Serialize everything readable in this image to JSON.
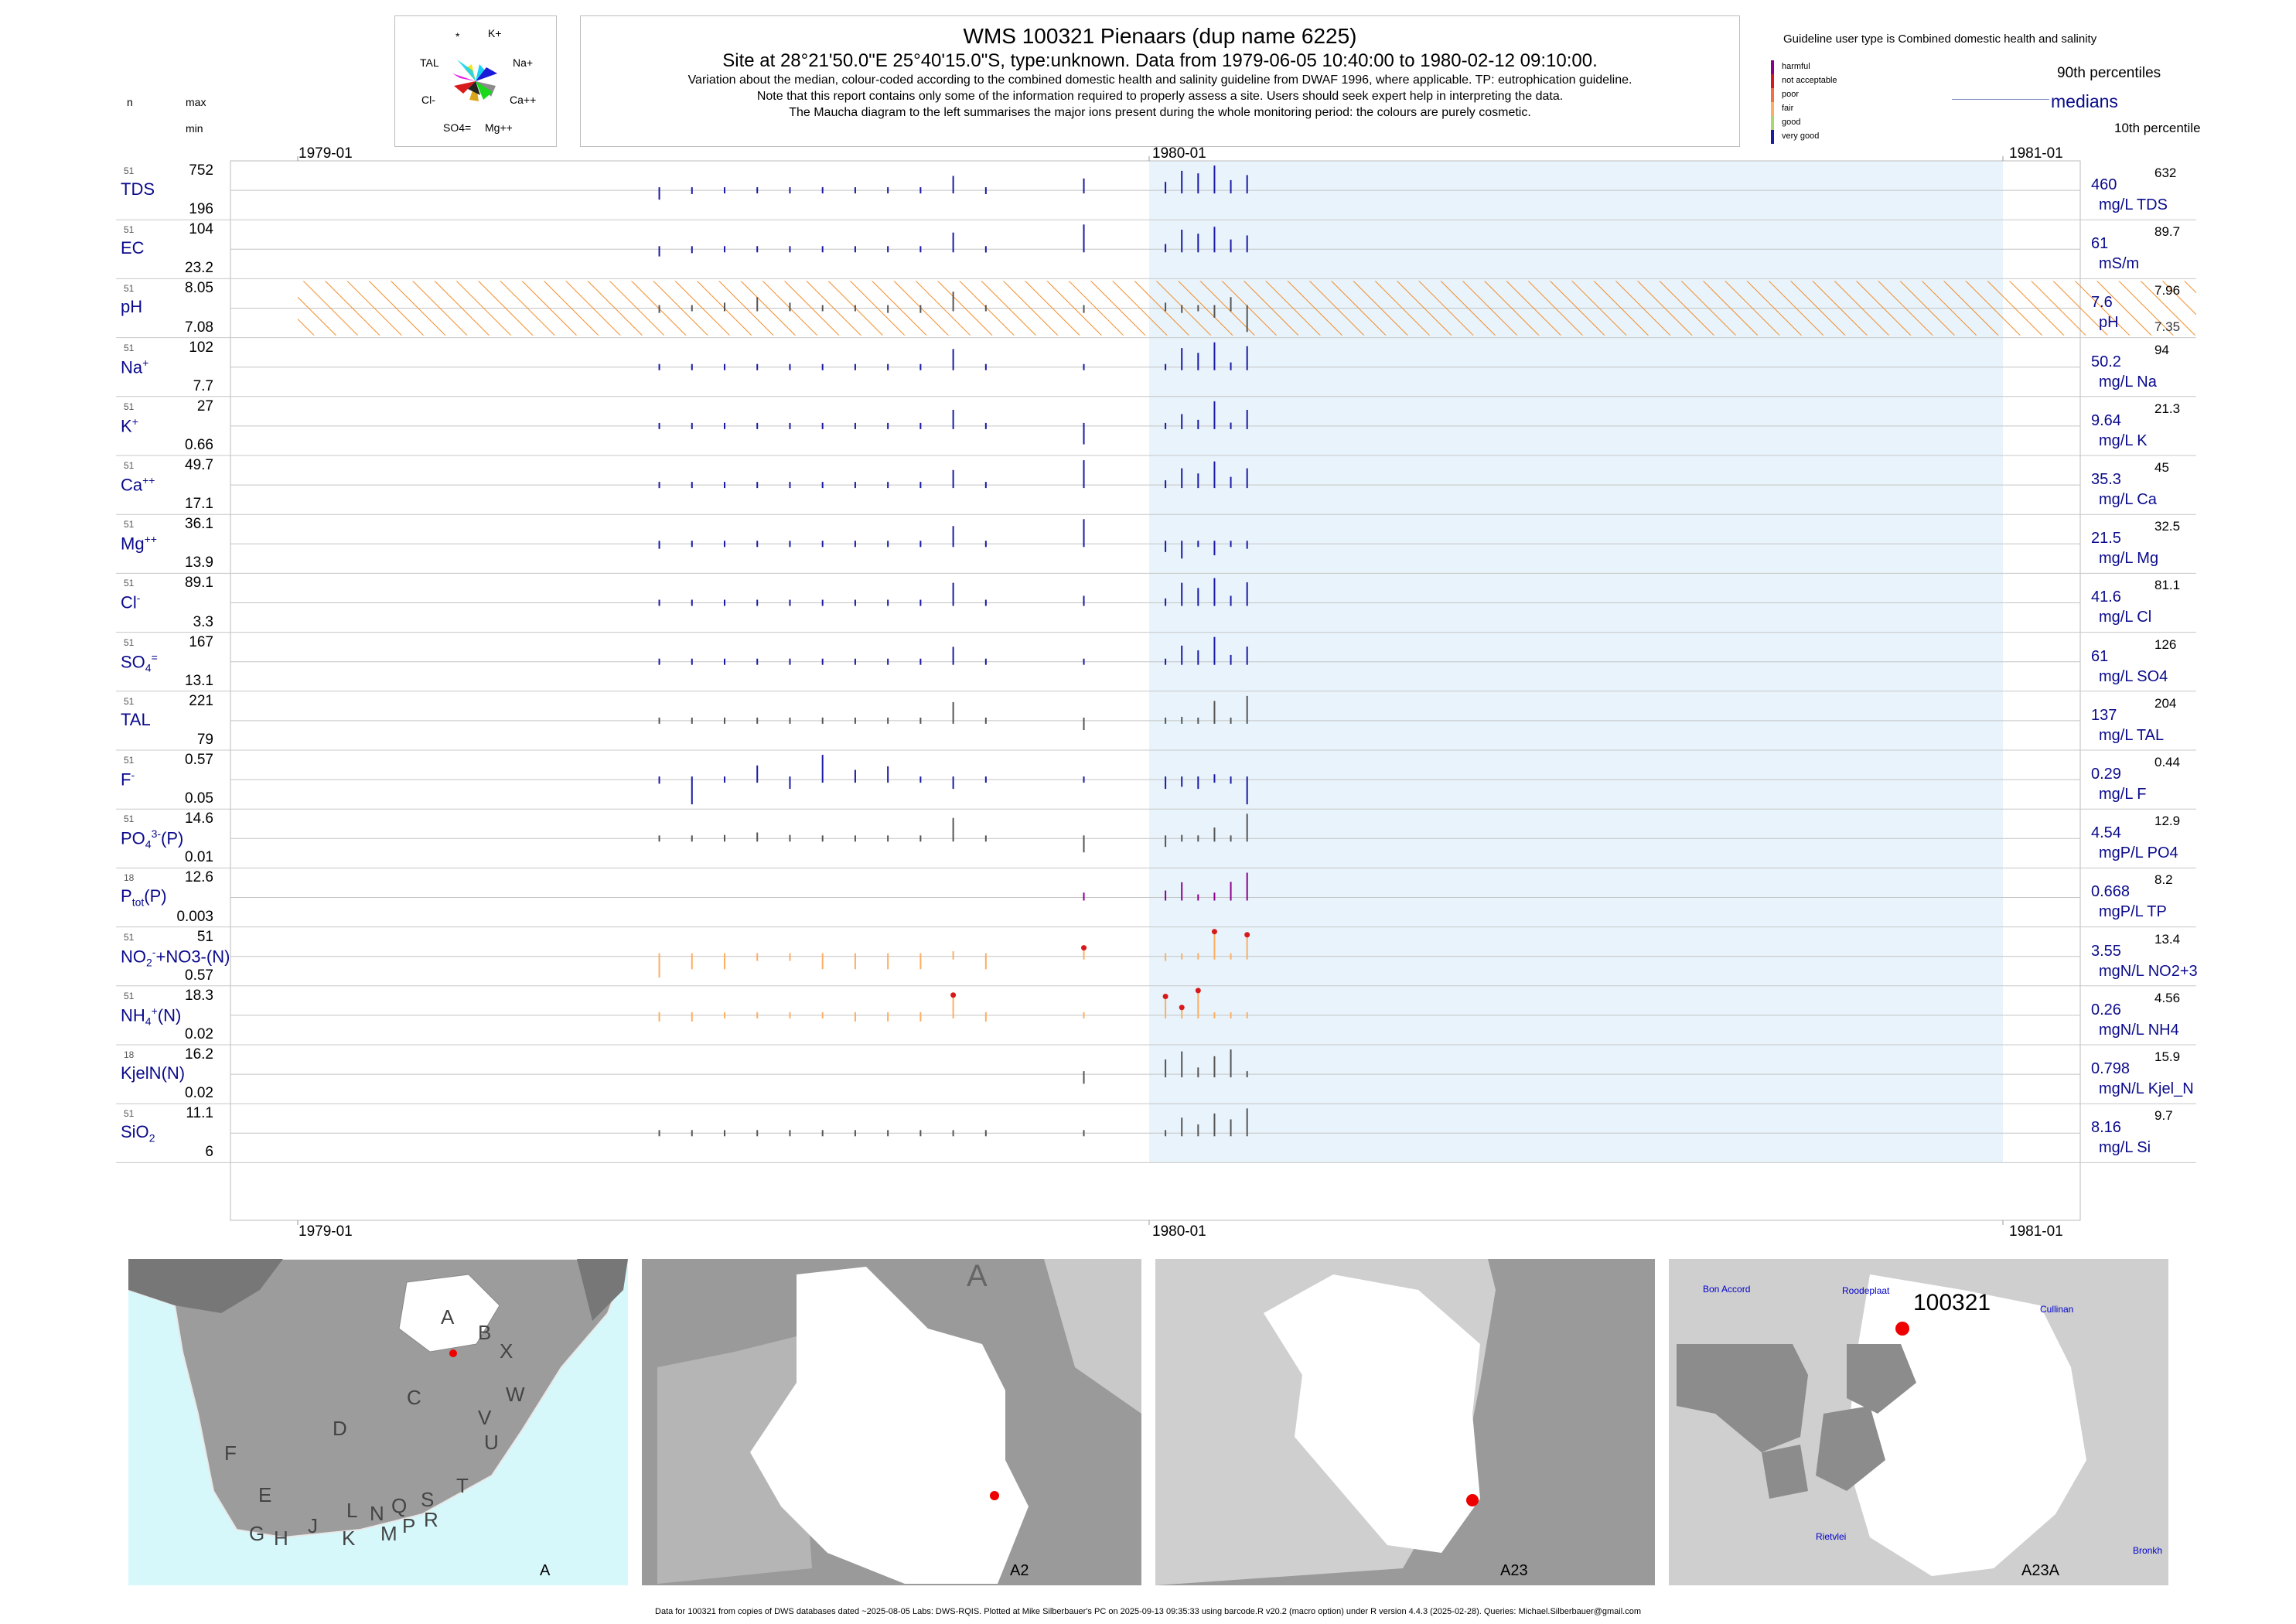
{
  "header": {
    "title": "WMS 100321  Pienaars (dup name 6225)",
    "subtitle": "Site at 28°21'50.0\"E 25°40'15.0\"S, type:unknown.  Data from 1979-06-05 10:40:00 to 1980-02-12 09:10:00.",
    "note1": "Variation about the median,  colour-coded according to the combined domestic health and salinity guideline from DWAF 1996, where applicable. TP: eutrophication guideline.",
    "note2": "Note that this report contains only some of the information required to properly assess a site. Users should seek expert help in interpreting the data.",
    "note3": "The Maucha diagram to the left summarises the major ions present during the whole monitoring period: the colours are purely cosmetic."
  },
  "maucha": {
    "labels": [
      "*",
      "K+",
      "TAL",
      "Na+",
      "Cl-",
      "Ca++",
      "SO4=",
      "Mg++"
    ],
    "colors": [
      "#f2e61a",
      "#1ad1f2",
      "#e61ae6",
      "#1a1ad9",
      "#d91a1a",
      "#8c8c8c",
      "#d9a61a",
      "#1ad91a"
    ]
  },
  "legend": {
    "guideline_text": "Guideline user type is Combined domestic health and salinity",
    "categories": [
      {
        "label": "harmful",
        "color": "#8b008b"
      },
      {
        "label": "not acceptable",
        "color": "#d7191c"
      },
      {
        "label": "poor",
        "color": "#f46d43"
      },
      {
        "label": "fair",
        "color": "#fdae61"
      },
      {
        "label": "good",
        "color": "#a6d96a"
      },
      {
        "label": "very good",
        "color": "#1a1aa6"
      }
    ],
    "p90": "90th percentiles",
    "medians": "medians",
    "p10": "10th percentile"
  },
  "column_headers": {
    "n": "n",
    "max": "max",
    "min": "min"
  },
  "chart_data": {
    "type": "line",
    "x_axis": {
      "ticks": [
        "1979-01",
        "1980-01",
        "1981-01"
      ],
      "range": [
        "1979-01-01",
        "1981-01-01"
      ]
    },
    "sample_dates": [
      "1979-06-05",
      "1979-06-19",
      "1979-07-03",
      "1979-07-17",
      "1979-07-31",
      "1979-08-14",
      "1979-08-28",
      "1979-09-11",
      "1979-09-25",
      "1979-10-09",
      "1979-10-23",
      "1979-12-04",
      "1980-01-08",
      "1980-01-15",
      "1980-01-22",
      "1980-01-29",
      "1980-02-05",
      "1980-02-12"
    ],
    "series": [
      {
        "name": "TDS",
        "sub": "",
        "sup": "",
        "n": "51",
        "max": "752",
        "min": "196",
        "median": "460",
        "unit": "mg/L TDS",
        "p90": "632",
        "p10": "",
        "tick_color": "#1a1aa6",
        "hatch": false,
        "values": [
          360,
          420,
          440,
          470,
          470,
          440,
          440,
          430,
          440,
          630,
          420,
          600,
          560,
          690,
          660,
          752,
          580,
          640
        ]
      },
      {
        "name": "EC",
        "sub": "",
        "sup": "",
        "n": "51",
        "max": "104",
        "min": "23.2",
        "median": "61",
        "unit": "mS/m",
        "p90": "89.7",
        "p10": "",
        "tick_color": "#1a1aa6",
        "hatch": false,
        "values": [
          50,
          55,
          58,
          62,
          63,
          58,
          58,
          57,
          58,
          90,
          56,
          104,
          70,
          95,
          88,
          100,
          78,
          85
        ]
      },
      {
        "name": "pH",
        "sub": "",
        "sup": "",
        "n": "51",
        "max": "8.05",
        "min": "7.08",
        "median": "7.6",
        "unit": "pH",
        "p90": "7.96",
        "p10": "7.35",
        "tick_color": "#555555",
        "hatch": true,
        "values": [
          7.5,
          7.6,
          7.7,
          7.8,
          7.7,
          7.6,
          7.6,
          7.5,
          7.5,
          7.9,
          7.6,
          7.5,
          7.7,
          7.5,
          7.6,
          7.4,
          7.8,
          7.1
        ]
      },
      {
        "name": "Na",
        "sub": "",
        "sup": "+",
        "n": "51",
        "max": "102",
        "min": "7.7",
        "median": "50.2",
        "unit": "mg/L Na",
        "p90": "94",
        "p10": "",
        "tick_color": "#1a1aa6",
        "hatch": false,
        "values": [
          45,
          48,
          50,
          52,
          52,
          50,
          49,
          48,
          49,
          88,
          47,
          50,
          55,
          90,
          80,
          102,
          60,
          94
        ]
      },
      {
        "name": "K",
        "sub": "",
        "sup": "+",
        "n": "51",
        "max": "27",
        "min": "0.66",
        "median": "9.64",
        "unit": "mg/L K",
        "p90": "21.3",
        "p10": "",
        "tick_color": "#1a1aa6",
        "hatch": false,
        "values": [
          9,
          10,
          10,
          11,
          11,
          10,
          10,
          10,
          10,
          21,
          9,
          3,
          10,
          18,
          14,
          27,
          12,
          21
        ]
      },
      {
        "name": "Ca",
        "sub": "",
        "sup": "++",
        "n": "51",
        "max": "49.7",
        "min": "17.1",
        "median": "35.3",
        "unit": "mg/L Ca",
        "p90": "45",
        "p10": "",
        "tick_color": "#1a1aa6",
        "hatch": false,
        "values": [
          33,
          34,
          35,
          36,
          36,
          35,
          35,
          34,
          34,
          44,
          34,
          49.7,
          38,
          45,
          42,
          49,
          40,
          45
        ]
      },
      {
        "name": "Mg",
        "sub": "",
        "sup": "++",
        "n": "51",
        "max": "36.1",
        "min": "13.9",
        "median": "21.5",
        "unit": "mg/L Mg",
        "p90": "32.5",
        "p10": "",
        "tick_color": "#1a1aa6",
        "hatch": false,
        "values": [
          20,
          21,
          22,
          23,
          23,
          22,
          21,
          21,
          21,
          32,
          21,
          36.1,
          19,
          17,
          22,
          18,
          22,
          20
        ]
      },
      {
        "name": "Cl",
        "sub": "",
        "sup": "-",
        "n": "51",
        "max": "89.1",
        "min": "3.3",
        "median": "41.6",
        "unit": "mg/L Cl",
        "p90": "81.1",
        "p10": "",
        "tick_color": "#1a1aa6",
        "hatch": false,
        "values": [
          38,
          40,
          42,
          43,
          43,
          42,
          41,
          40,
          41,
          80,
          40,
          55,
          50,
          80,
          70,
          89.1,
          55,
          81
        ]
      },
      {
        "name": "SO",
        "sub": "4",
        "sup": "=",
        "n": "51",
        "max": "167",
        "min": "13.1",
        "median": "61",
        "unit": "mg/L SO4",
        "p90": "126",
        "p10": "",
        "tick_color": "#1a1aa6",
        "hatch": false,
        "values": [
          55,
          58,
          60,
          62,
          62,
          60,
          59,
          58,
          59,
          125,
          58,
          60,
          65,
          130,
          110,
          167,
          90,
          126
        ]
      },
      {
        "name": "TAL",
        "sub": "",
        "sup": "",
        "n": "51",
        "max": "221",
        "min": "79",
        "median": "137",
        "unit": "mg/L TAL",
        "p90": "204",
        "p10": "",
        "tick_color": "#555555",
        "hatch": false,
        "values": [
          130,
          135,
          140,
          145,
          145,
          140,
          138,
          136,
          137,
          200,
          135,
          115,
          130,
          150,
          140,
          204,
          145,
          221
        ]
      },
      {
        "name": "F",
        "sub": "",
        "sup": "-",
        "n": "51",
        "max": "0.57",
        "min": "0.05",
        "median": "0.29",
        "unit": "mg/L F",
        "p90": "0.44",
        "p10": "",
        "tick_color": "#1a1aa6",
        "hatch": false,
        "values": [
          0.25,
          0.05,
          0.3,
          0.45,
          0.2,
          0.57,
          0.4,
          0.44,
          0.3,
          0.2,
          0.28,
          0.3,
          0.2,
          0.22,
          0.2,
          0.35,
          0.25,
          0.05
        ]
      },
      {
        "name": "PO",
        "sub": "4",
        "sup": "3-",
        "suffix": "(P)",
        "n": "51",
        "max": "14.6",
        "min": "0.01",
        "median": "4.54",
        "unit": "mgP/L PO4",
        "p90": "12.9",
        "p10": "",
        "tick_color": "#555555",
        "hatch": false,
        "values": [
          4,
          5,
          6,
          7,
          6,
          5,
          5,
          4,
          4,
          12.9,
          4,
          2,
          3,
          6,
          5,
          9,
          4,
          14.6
        ]
      },
      {
        "name": "P",
        "sub": "tot",
        "sup": "",
        "suffix": "(P)",
        "n": "18",
        "max": "12.6",
        "min": "0.003",
        "median": "0.668",
        "unit": "mgP/L TP",
        "p90": "8.2",
        "p10": "",
        "tick_color": "#8b008b",
        "hatch": false,
        "values": [
          null,
          null,
          null,
          null,
          null,
          null,
          null,
          null,
          null,
          null,
          null,
          3,
          4,
          8,
          1,
          3,
          8.2,
          12.6
        ]
      },
      {
        "name": "NO",
        "sub": "2",
        "sup": "-",
        "suffix": "+NO3-(N)",
        "n": "51",
        "max": "51",
        "min": "0.57",
        "median": "3.55",
        "unit": "mgN/L NO2+3",
        "p90": "13.4",
        "p10": "",
        "tick_color": "#fdae61",
        "hatch": false,
        "values": [
          1,
          2,
          2,
          3,
          3,
          2,
          2,
          2,
          2,
          13.4,
          2,
          20,
          3,
          4,
          5,
          51,
          6,
          45
        ]
      },
      {
        "name": "NH",
        "sub": "4",
        "sup": "+",
        "suffix": "(N)",
        "n": "51",
        "max": "18.3",
        "min": "0.02",
        "median": "0.26",
        "unit": "mgN/L NH4",
        "p90": "4.56",
        "p10": "",
        "tick_color": "#fdae61",
        "hatch": false,
        "values": [
          0.2,
          0.2,
          0.3,
          0.3,
          0.3,
          0.3,
          0.2,
          0.2,
          0.2,
          15,
          0.2,
          0.3,
          14,
          6,
          18.3,
          0.3,
          0.3,
          0.3
        ]
      },
      {
        "name": "KjelN(N)",
        "sub": "",
        "sup": "",
        "n": "18",
        "max": "16.2",
        "min": "0.02",
        "median": "0.798",
        "unit": "mgN/L Kjel_N",
        "p90": "15.9",
        "p10": "",
        "tick_color": "#555555",
        "hatch": false,
        "values": [
          null,
          null,
          null,
          null,
          null,
          null,
          null,
          null,
          null,
          null,
          null,
          0.5,
          10,
          15,
          5,
          12,
          16.2,
          1
        ]
      },
      {
        "name": "SiO",
        "sub": "2",
        "sup": "",
        "n": "51",
        "max": "11.1",
        "min": "6",
        "median": "8.16",
        "unit": "mg/L Si",
        "p90": "9.7",
        "p10": "",
        "tick_color": "#555555",
        "hatch": false,
        "values": [
          8.5,
          8.2,
          8.3,
          8.1,
          8.2,
          8.3,
          8.1,
          8.2,
          8.1,
          8,
          8.2,
          8,
          8.5,
          10,
          9.2,
          10.5,
          9.8,
          11.1
        ]
      }
    ]
  },
  "maps": [
    {
      "label": "A",
      "letters": [
        "A",
        "B",
        "X",
        "C",
        "W",
        "V",
        "U",
        "D",
        "T",
        "F",
        "E",
        "G",
        "H",
        "J",
        "K",
        "L",
        "M",
        "N",
        "P",
        "Q",
        "R",
        "S"
      ]
    },
    {
      "label": "A2",
      "letters": [
        "A"
      ]
    },
    {
      "label": "A23",
      "letters": []
    },
    {
      "label": "A23A",
      "site": "100321",
      "places": [
        "Bon Accord",
        "Roodeplaat",
        "Cullinan",
        "Rietvlei",
        "Bronkh"
      ]
    }
  ],
  "footer": "Data for 100321 from copies of DWS databases dated ~2025-08-05 Labs: DWS-RQIS. Plotted at Mike Silberbauer's PC on 2025-09-13 09:35:33 using barcode.R v20.2 (macro option) under R version 4.4.3 (2025-02-28). Queries: Michael.Silberbauer@gmail.com"
}
